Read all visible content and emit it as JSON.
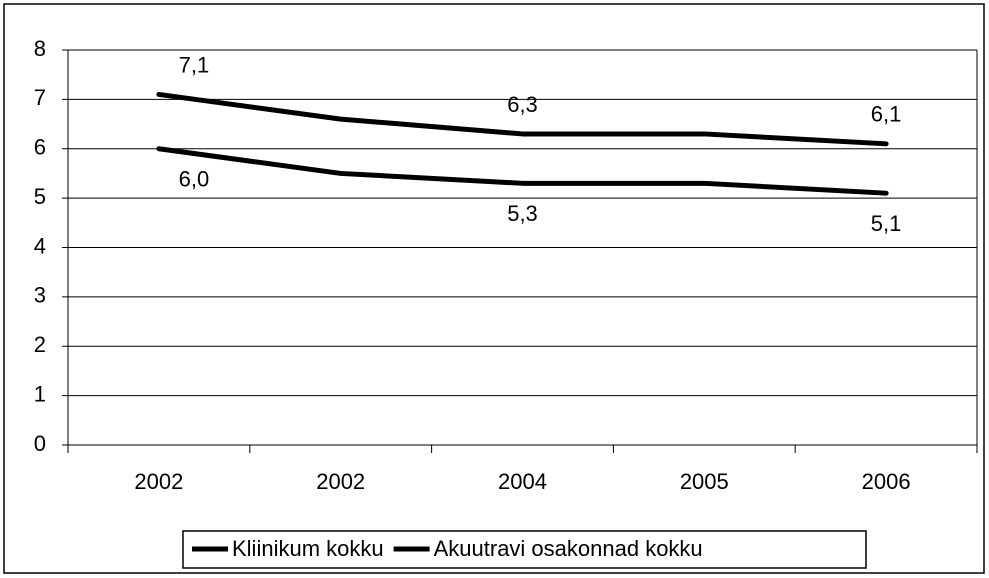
{
  "chart_data": {
    "type": "line",
    "categories": [
      "2002",
      "2002",
      "2004",
      "2005",
      "2006"
    ],
    "series": [
      {
        "name": "Kliinikum kokku",
        "color": "#000000",
        "values": [
          7.1,
          6.6,
          6.3,
          6.3,
          6.1
        ],
        "value_labels": [
          "7,1",
          null,
          "6,3",
          null,
          "6,1"
        ]
      },
      {
        "name": "Akuutravi osakonnad kokku",
        "color": "#000000",
        "values": [
          6.0,
          5.5,
          5.3,
          5.3,
          5.1
        ],
        "value_labels": [
          "6,0",
          null,
          "5,3",
          null,
          "5,1"
        ]
      }
    ],
    "ylim": [
      0,
      8
    ],
    "yticks": [
      0,
      1,
      2,
      3,
      4,
      5,
      6,
      7,
      8
    ],
    "grid": true,
    "legend": "bottom"
  }
}
